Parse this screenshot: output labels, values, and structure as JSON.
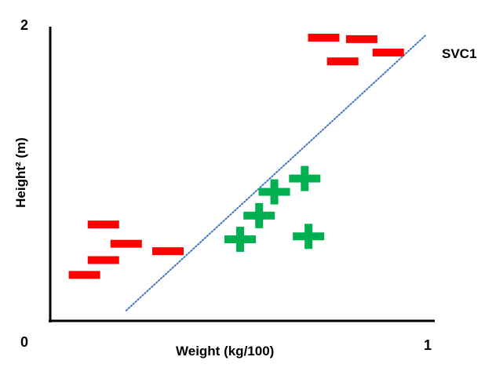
{
  "chart_data": {
    "type": "scatter",
    "title": "",
    "xlabel": "Weight (kg/100)",
    "ylabel": "Height² (m)",
    "xlim": [
      0,
      1
    ],
    "ylim": [
      0,
      2
    ],
    "tick_labels": {
      "x_min": "0",
      "x_max": "1",
      "y_max": "2"
    },
    "series": [
      {
        "marker": "minus",
        "color": "#ff0000",
        "points": [
          {
            "x": 0.09,
            "y": 0.31
          },
          {
            "x": 0.14,
            "y": 0.41
          },
          {
            "x": 0.14,
            "y": 0.65
          },
          {
            "x": 0.2,
            "y": 0.52
          },
          {
            "x": 0.31,
            "y": 0.47
          },
          {
            "x": 0.72,
            "y": 1.91
          },
          {
            "x": 0.77,
            "y": 1.75
          },
          {
            "x": 0.82,
            "y": 1.9
          },
          {
            "x": 0.89,
            "y": 1.81
          }
        ]
      },
      {
        "marker": "plus",
        "color": "#00b050",
        "points": [
          {
            "x": 0.5,
            "y": 0.55
          },
          {
            "x": 0.55,
            "y": 0.71
          },
          {
            "x": 0.59,
            "y": 0.87
          },
          {
            "x": 0.67,
            "y": 0.96
          },
          {
            "x": 0.68,
            "y": 0.57
          }
        ]
      }
    ],
    "decision_line": {
      "label": "SVC1",
      "style": "dotted",
      "color": "#4472c4",
      "points": [
        [
          0.2,
          0.07
        ],
        [
          0.99,
          1.93
        ]
      ]
    }
  }
}
